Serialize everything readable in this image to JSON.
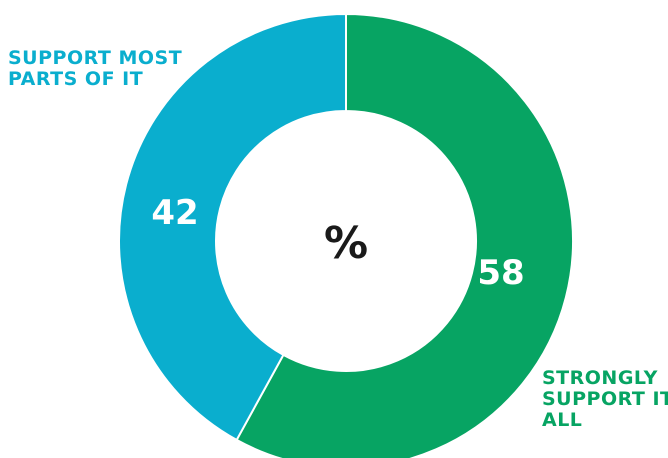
{
  "chart_data": {
    "type": "pie",
    "donut": true,
    "center_label": "%",
    "slices": [
      {
        "label_lines": [
          "STRONGLY",
          "SUPPORT IT",
          "ALL"
        ],
        "value": 58,
        "value_label": "58",
        "color": "#07a463"
      },
      {
        "label_lines": [
          "SUPPORT MOST",
          "PARTS OF IT"
        ],
        "value": 42,
        "value_label": "42",
        "color": "#0aaece"
      }
    ],
    "legend": "none"
  }
}
